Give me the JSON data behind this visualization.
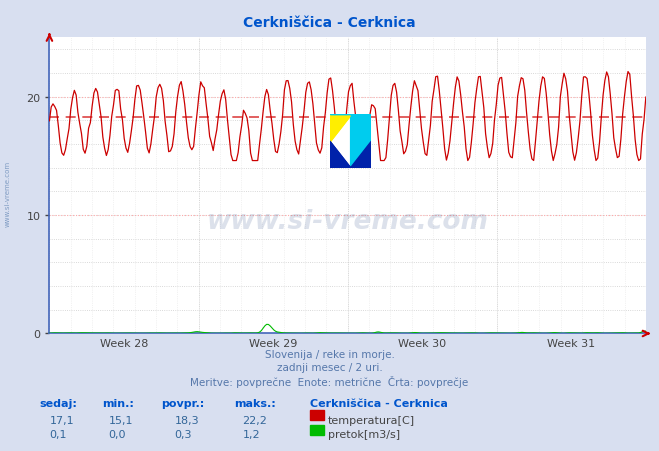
{
  "title": "Cerkniščica - Cerknica",
  "title_color": "#0055cc",
  "bg_color": "#d8dff0",
  "plot_bg_color": "#ffffff",
  "grid_color": "#cccccc",
  "temp_color": "#cc0000",
  "flow_color": "#00bb00",
  "avg_line_color": "#dd4444",
  "border_color": "#4466bb",
  "arrow_color": "#cc0000",
  "temp_avg": 18.3,
  "temp_min": 15.1,
  "temp_max": 22.2,
  "temp_current": 17.1,
  "flow_avg": 0.3,
  "flow_min": 0.0,
  "flow_max": 1.2,
  "flow_current": 0.1,
  "ylim": [
    0,
    25
  ],
  "yticks": [
    0,
    10,
    20
  ],
  "week_labels": [
    "Week 28",
    "Week 29",
    "Week 30",
    "Week 31"
  ],
  "subtitle1": "Slovenija / reke in morje.",
  "subtitle2": "zadnji mesec / 2 uri.",
  "subtitle3": "Meritve: povprečne  Enote: metrične  Črta: povprečje",
  "subtitle_color": "#5577aa",
  "legend_title": "Cerkniščica - Cerknica",
  "legend_hdr_color": "#0055cc",
  "legend_val_color": "#336699",
  "legend_text_color": "#444444",
  "watermark_text": "www.si-vreme.com",
  "watermark_color": "#1a3a7a",
  "watermark_alpha": 0.15,
  "side_watermark_color": "#7090bb",
  "n_points": 336,
  "weeks": 4
}
